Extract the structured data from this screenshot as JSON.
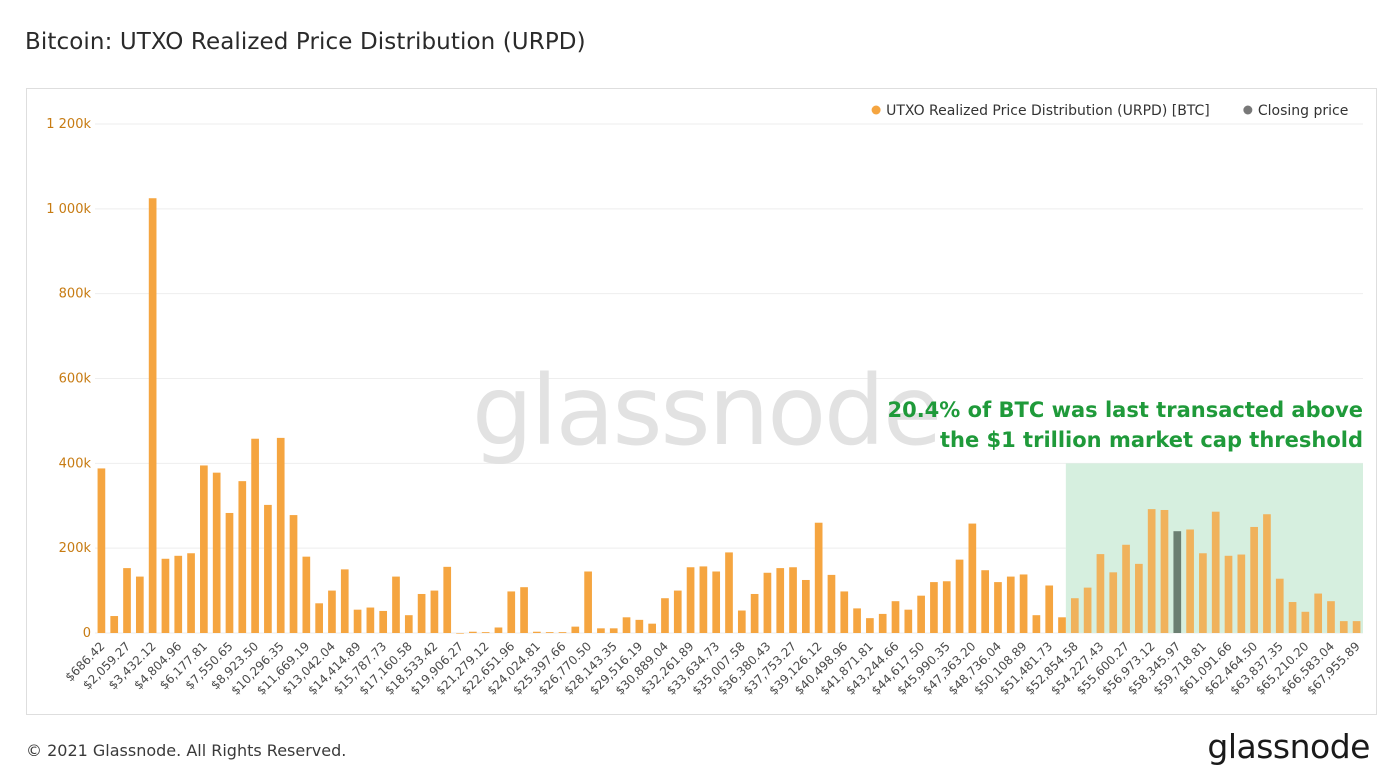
{
  "title": "Bitcoin: UTXO Realized Price Distribution (URPD)",
  "footer": {
    "copyright": "© 2021 Glassnode. All Rights Reserved.",
    "logo": "glassnode"
  },
  "watermark": "glassnode",
  "colors": {
    "bar": "#f5a540",
    "closing": "#6b7f72",
    "highlight": "#d6efdf",
    "annotation": "#1f9a3a",
    "tick_y": "#c77b12"
  },
  "chart_data": {
    "type": "bar",
    "title": "",
    "xlabel": "",
    "ylabel": "",
    "ylim": [
      0,
      1200000
    ],
    "yticks": [
      {
        "value": 0,
        "label": "0"
      },
      {
        "value": 200000,
        "label": "200k"
      },
      {
        "value": 400000,
        "label": "400k"
      },
      {
        "value": 600000,
        "label": "600k"
      },
      {
        "value": 800000,
        "label": "800k"
      },
      {
        "value": 1000000,
        "label": "1 000k"
      },
      {
        "value": 1200000,
        "label": "1 200k"
      }
    ],
    "grid": true,
    "legend": {
      "placement": "top-right",
      "entries": [
        {
          "name": "UTXO Realized Price Distribution (URPD) [BTC]",
          "color": "#f5a540"
        },
        {
          "name": "Closing price",
          "color": "#787878"
        }
      ]
    },
    "series_name": "UTXO Realized Price Distribution (URPD) [BTC]",
    "xticks": [
      "$686.42",
      "$2,059.27",
      "$3,432.12",
      "$4,804.96",
      "$6,177.81",
      "$7,550.65",
      "$8,923.50",
      "$10,296.35",
      "$11,669.19",
      "$13,042.04",
      "$14,414.89",
      "$15,787.73",
      "$17,160.58",
      "$18,533.42",
      "$19,906.27",
      "$21,279.12",
      "$22,651.96",
      "$24,024.81",
      "$25,397.66",
      "$26,770.50",
      "$28,143.35",
      "$29,516.19",
      "$30,889.04",
      "$32,261.89",
      "$33,634.73",
      "$35,007.58",
      "$36,380.43",
      "$37,753.27",
      "$39,126.12",
      "$40,498.96",
      "$41,871.81",
      "$43,244.66",
      "$44,617.50",
      "$45,990.35",
      "$47,363.20",
      "$48,736.04",
      "$50,108.89",
      "$51,481.73",
      "$52,854.58",
      "$54,227.43",
      "$55,600.27",
      "$56,973.12",
      "$58,345.97",
      "$59,718.81",
      "$61,091.66",
      "$62,464.50",
      "$63,837.35",
      "$65,210.20",
      "$66,583.04",
      "$67,955.89"
    ],
    "values": [
      388000,
      40000,
      153000,
      133000,
      1025000,
      175000,
      182000,
      188000,
      395000,
      378000,
      283000,
      358000,
      458000,
      302000,
      460000,
      278000,
      180000,
      70000,
      100000,
      150000,
      55000,
      60000,
      52000,
      133000,
      42000,
      92000,
      100000,
      156000,
      0,
      3000,
      2000,
      13000,
      98000,
      108000,
      3000,
      2000,
      2000,
      15000,
      145000,
      11000,
      11000,
      37000,
      31000,
      22000,
      82000,
      100000,
      155000,
      157000,
      145000,
      190000,
      53000,
      92000,
      142000,
      153000,
      155000,
      125000,
      260000,
      137000,
      98000,
      58000,
      35000,
      45000,
      75000,
      55000,
      88000,
      120000,
      122000,
      173000,
      258000,
      148000,
      120000,
      133000,
      138000,
      42000,
      112000,
      37000,
      82000,
      107000,
      186000,
      143000,
      208000,
      163000,
      292000,
      290000,
      240000,
      244000,
      188000,
      286000,
      182000,
      185000,
      250000,
      280000,
      128000,
      73000,
      50000,
      93000,
      75000,
      28000,
      28000
    ],
    "closing_price_index": 84,
    "highlight": {
      "from_index": 76,
      "to_index": 98,
      "ymax": 400000,
      "annotation": [
        "20.4% of BTC was last transacted above",
        "the $1 trillion market cap threshold"
      ]
    }
  }
}
